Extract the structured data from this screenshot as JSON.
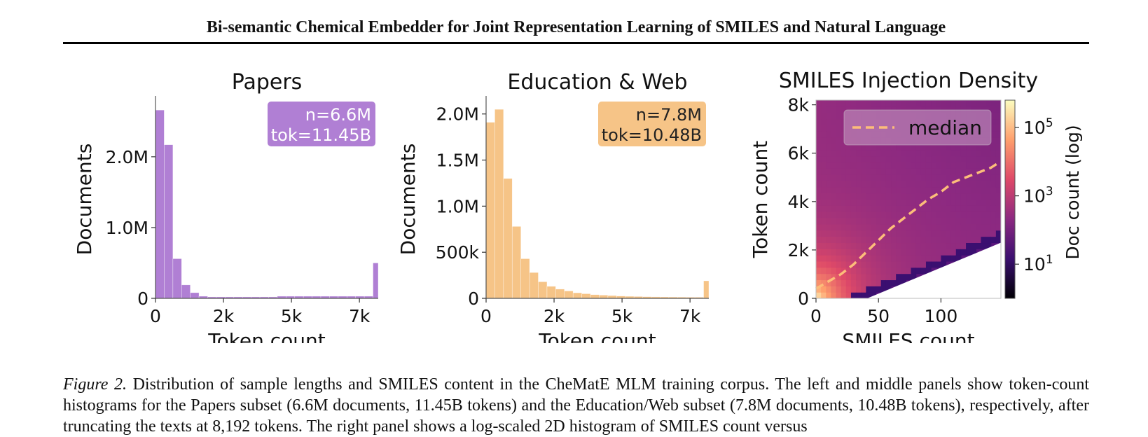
{
  "header": {
    "title": "Bi-semantic Chemical Embedder for Joint Representation Learning of SMILES and Natural Language"
  },
  "chart_data": [
    {
      "type": "bar",
      "title": "Papers",
      "xlabel": "Token count",
      "ylabel": "Documents",
      "xlim": [
        0,
        8192
      ],
      "ylim": [
        0,
        2800000
      ],
      "x_ticks": [
        {
          "v": 0,
          "label": "0"
        },
        {
          "v": 2500,
          "label": "2k"
        },
        {
          "v": 5000,
          "label": "5k"
        },
        {
          "v": 7500,
          "label": "7k"
        }
      ],
      "y_ticks": [
        {
          "v": 0,
          "label": "0"
        },
        {
          "v": 1000000,
          "label": "1.0M"
        },
        {
          "v": 2000000,
          "label": "2.0M"
        }
      ],
      "bin_width": 320,
      "bins_start": [
        0,
        320,
        640,
        960,
        1280,
        1600,
        1920,
        2240,
        2560,
        2880,
        3200,
        3520,
        3840,
        4160,
        4480,
        4800,
        5120,
        5440,
        5760,
        6080,
        6400,
        6720,
        7040,
        7360,
        7680,
        8000
      ],
      "values": [
        2660000,
        2170000,
        560000,
        190000,
        80000,
        30000,
        20000,
        20000,
        20000,
        20000,
        20000,
        20000,
        20000,
        20000,
        30000,
        30000,
        30000,
        30000,
        30000,
        30000,
        30000,
        30000,
        30000,
        30000,
        30000,
        500000
      ],
      "color": "#b07fd4",
      "annotation": [
        "n=6.6M",
        "tok=11.45B"
      ],
      "annotation_color": "#b07fd4"
    },
    {
      "type": "bar",
      "title": "Education & Web",
      "xlabel": "Token count",
      "ylabel": "Documents",
      "xlim": [
        0,
        8192
      ],
      "ylim": [
        0,
        2150000
      ],
      "x_ticks": [
        {
          "v": 0,
          "label": "0"
        },
        {
          "v": 2500,
          "label": "2k"
        },
        {
          "v": 5000,
          "label": "5k"
        },
        {
          "v": 7500,
          "label": "7k"
        }
      ],
      "y_ticks": [
        {
          "v": 0,
          "label": "0"
        },
        {
          "v": 500000,
          "label": "500k"
        },
        {
          "v": 1000000,
          "label": "1.0M"
        },
        {
          "v": 1500000,
          "label": "1.5M"
        },
        {
          "v": 2000000,
          "label": "2.0M"
        }
      ],
      "bin_width": 320,
      "bins_start": [
        0,
        320,
        640,
        960,
        1280,
        1600,
        1920,
        2240,
        2560,
        2880,
        3200,
        3520,
        3840,
        4160,
        4480,
        4800,
        5120,
        5440,
        5760,
        6080,
        6400,
        6720,
        7040,
        7360,
        7680,
        8000
      ],
      "values": [
        1910000,
        2050000,
        1300000,
        780000,
        430000,
        280000,
        180000,
        130000,
        100000,
        80000,
        60000,
        50000,
        40000,
        35000,
        30000,
        25000,
        22000,
        20000,
        18000,
        16000,
        15000,
        14000,
        13000,
        12000,
        12000,
        190000
      ],
      "color": "#f6c487",
      "annotation": [
        "n=7.8M",
        "tok=10.48B"
      ],
      "annotation_color": "#f6c487"
    },
    {
      "type": "heatmap",
      "title": "SMILES Injection Density",
      "xlabel": "SMILES count",
      "ylabel": "Token count",
      "xlim": [
        0,
        148
      ],
      "ylim": [
        0,
        8192
      ],
      "x_ticks": [
        {
          "v": 0,
          "label": "0"
        },
        {
          "v": 50,
          "label": "50"
        },
        {
          "v": 100,
          "label": "100"
        }
      ],
      "y_ticks": [
        {
          "v": 0,
          "label": "0"
        },
        {
          "v": 2000,
          "label": "2k"
        },
        {
          "v": 4000,
          "label": "4k"
        },
        {
          "v": 6000,
          "label": "6k"
        },
        {
          "v": 8000,
          "label": "8k"
        }
      ],
      "colorbar_label": "Doc count (log)",
      "colorbar_ticks": [
        {
          "exp": 1,
          "label": "10",
          "sup": "1"
        },
        {
          "exp": 3,
          "label": "10",
          "sup": "3"
        },
        {
          "exp": 5,
          "label": "10",
          "sup": "5"
        }
      ],
      "legend": "median",
      "median_line": {
        "x": [
          0,
          10,
          20,
          30,
          40,
          50,
          60,
          70,
          80,
          90,
          100,
          110,
          120,
          130,
          140,
          146
        ],
        "y": [
          400,
          700,
          1000,
          1400,
          1900,
          2400,
          2900,
          3300,
          3700,
          4100,
          4400,
          4800,
          5000,
          5200,
          5400,
          5600
        ]
      }
    }
  ],
  "caption": {
    "label": "Figure 2.",
    "text": "Distribution of sample lengths and SMILES content in the CheMatE MLM training corpus. The left and middle panels show token-count histograms for the Papers subset (6.6M documents, 11.45B tokens) and the Education/Web subset (7.8M documents, 10.48B tokens), respectively, after truncating the texts at 8,192 tokens. The right panel shows a log-scaled 2D histogram of SMILES count versus"
  }
}
